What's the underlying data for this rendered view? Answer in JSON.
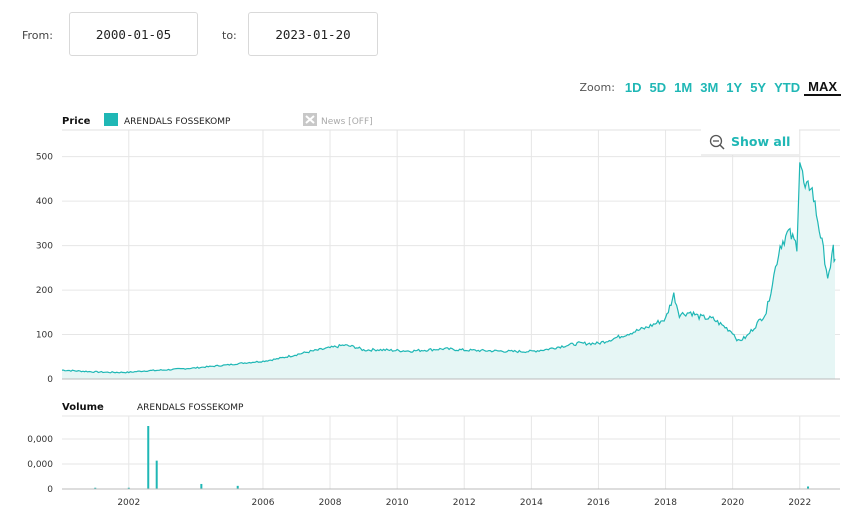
{
  "controls": {
    "from_label": "From:",
    "from_value": "2000-01-05",
    "to_label": "to:",
    "to_value": "2023-01-20",
    "zoom_label": "Zoom:",
    "zoom_options": [
      "1D",
      "5D",
      "1M",
      "3M",
      "1Y",
      "5Y",
      "YTD",
      "MAX"
    ],
    "zoom_active": "MAX",
    "show_all": "Show all"
  },
  "legend": {
    "price_title": "Price",
    "series_name": "ARENDALS FOSSEKOMP",
    "news": "News [OFF]",
    "volume_title": "Volume",
    "volume_series": "ARENDALS FOSSEKOMP"
  },
  "colors": {
    "series": "#1fb7b5",
    "fill": "#e6f6f5",
    "active": "#111111"
  },
  "chart_data": [
    {
      "type": "area",
      "title": "Price",
      "series": [
        {
          "name": "ARENDALS FOSSEKOMP",
          "points": [
            [
              "2000-01-05",
              20
            ],
            [
              "2000-07-01",
              18
            ],
            [
              "2001-01-01",
              16
            ],
            [
              "2001-06-01",
              15
            ],
            [
              "2002-01-01",
              15
            ],
            [
              "2002-06-01",
              18
            ],
            [
              "2003-01-01",
              20
            ],
            [
              "2003-06-01",
              22
            ],
            [
              "2004-01-01",
              25
            ],
            [
              "2004-06-01",
              28
            ],
            [
              "2005-01-01",
              32
            ],
            [
              "2005-06-01",
              36
            ],
            [
              "2006-01-01",
              40
            ],
            [
              "2006-06-01",
              45
            ],
            [
              "2007-01-01",
              55
            ],
            [
              "2007-06-01",
              62
            ],
            [
              "2008-01-01",
              70
            ],
            [
              "2008-06-01",
              76
            ],
            [
              "2008-10-01",
              72
            ],
            [
              "2009-01-01",
              65
            ],
            [
              "2009-06-01",
              66
            ],
            [
              "2010-01-01",
              64
            ],
            [
              "2010-06-01",
              63
            ],
            [
              "2011-01-01",
              66
            ],
            [
              "2011-06-01",
              68
            ],
            [
              "2012-01-01",
              65
            ],
            [
              "2012-06-01",
              64
            ],
            [
              "2013-01-01",
              63
            ],
            [
              "2013-06-01",
              62
            ],
            [
              "2014-01-01",
              62
            ],
            [
              "2014-06-01",
              66
            ],
            [
              "2015-01-01",
              75
            ],
            [
              "2015-06-01",
              80
            ],
            [
              "2016-01-01",
              80
            ],
            [
              "2016-06-01",
              90
            ],
            [
              "2017-01-01",
              105
            ],
            [
              "2017-06-01",
              115
            ],
            [
              "2018-01-01",
              135
            ],
            [
              "2018-04-01",
              190
            ],
            [
              "2018-06-01",
              145
            ],
            [
              "2018-10-01",
              150
            ],
            [
              "2019-01-01",
              140
            ],
            [
              "2019-06-01",
              135
            ],
            [
              "2020-01-01",
              105
            ],
            [
              "2020-03-01",
              85
            ],
            [
              "2020-06-01",
              95
            ],
            [
              "2021-01-01",
              150
            ],
            [
              "2021-06-01",
              300
            ],
            [
              "2021-09-01",
              330
            ],
            [
              "2021-12-01",
              300
            ],
            [
              "2022-01-01",
              495
            ],
            [
              "2022-03-01",
              420
            ],
            [
              "2022-05-01",
              440
            ],
            [
              "2022-08-01",
              340
            ],
            [
              "2022-10-01",
              270
            ],
            [
              "2022-11-01",
              230
            ],
            [
              "2022-12-01",
              240
            ],
            [
              "2023-01-01",
              310
            ],
            [
              "2023-01-10",
              260
            ],
            [
              "2023-01-20",
              270
            ]
          ]
        }
      ],
      "ylim": [
        0,
        560
      ],
      "yticks": [
        0,
        100,
        200,
        300,
        400,
        500
      ],
      "xticks": [
        "2002",
        "2006",
        "2008",
        "2010",
        "2012",
        "2014",
        "2016",
        "2018",
        "2020",
        "2022"
      ],
      "grid": true
    },
    {
      "type": "bar",
      "title": "Volume",
      "series": [
        {
          "name": "ARENDALS FOSSEKOMP",
          "points": [
            [
              "2001-01-01",
              0.02
            ],
            [
              "2002-01-01",
              0.02
            ],
            [
              "2002-08-01",
              1.0
            ],
            [
              "2002-11-01",
              0.45
            ],
            [
              "2004-03-01",
              0.08
            ],
            [
              "2005-04-01",
              0.05
            ],
            [
              "2022-04-01",
              0.04
            ]
          ]
        }
      ],
      "ytick_labels": [
        "0",
        "0,000",
        "0,000"
      ]
    }
  ]
}
